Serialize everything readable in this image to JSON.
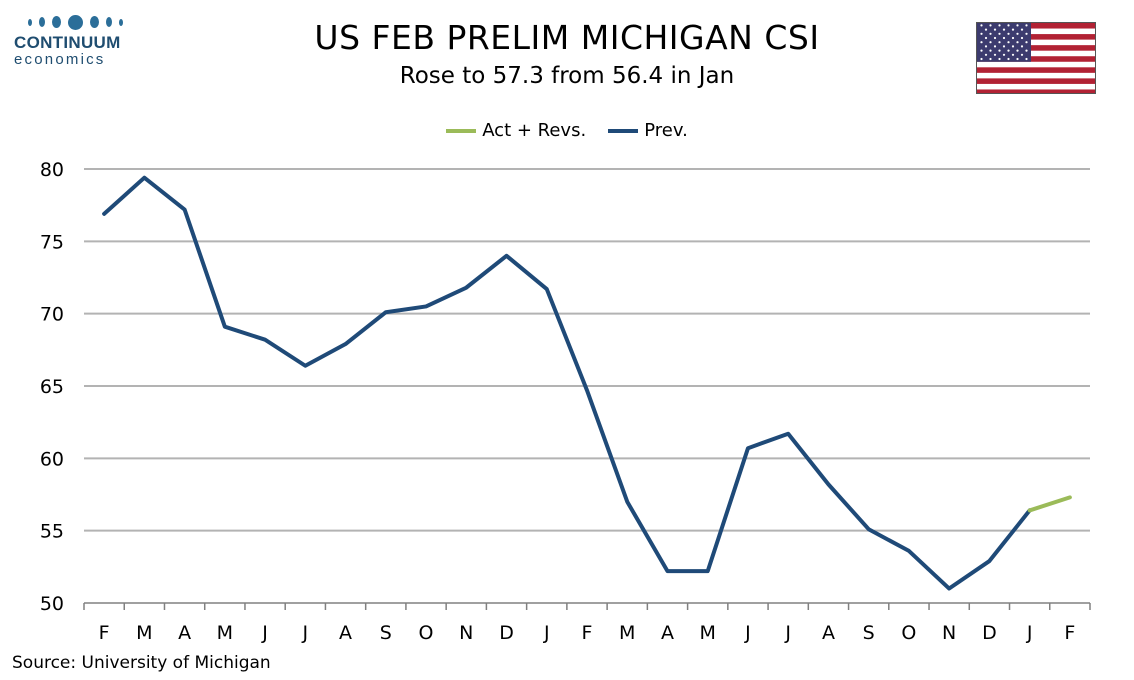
{
  "logo": {
    "name": "CONTINUUM",
    "sub": "economics"
  },
  "header": {
    "title": "US FEB PRELIM MICHIGAN CSI",
    "subtitle": "Rose to 57.3 from 56.4 in Jan"
  },
  "flag": {
    "name": "us-flag"
  },
  "source": "Source: University of Michigan",
  "colors": {
    "prev": "#1f4a78",
    "act": "#9bbb59",
    "grid": "#b3b3b3",
    "axis": "#808080"
  },
  "chart_data": {
    "type": "line",
    "title": "US FEB PRELIM MICHIGAN CSI",
    "subtitle": "Rose to 57.3 from 56.4 in Jan",
    "categories": [
      "F",
      "M",
      "A",
      "M",
      "J",
      "J",
      "A",
      "S",
      "O",
      "N",
      "D",
      "J",
      "F",
      "M",
      "A",
      "M",
      "J",
      "J",
      "A",
      "S",
      "O",
      "N",
      "D",
      "J",
      "F"
    ],
    "ylim": [
      50,
      80
    ],
    "yticks": [
      50,
      55,
      60,
      65,
      70,
      75,
      80
    ],
    "grid": true,
    "legend_position": "top-center",
    "series": [
      {
        "name": "Act + Revs.",
        "color": "#9bbb59",
        "values": [
          null,
          null,
          null,
          null,
          null,
          null,
          null,
          null,
          null,
          null,
          null,
          null,
          null,
          null,
          null,
          null,
          null,
          null,
          null,
          null,
          null,
          null,
          null,
          56.4,
          57.3
        ]
      },
      {
        "name": "Prev.",
        "color": "#1f4a78",
        "values": [
          76.9,
          79.4,
          77.2,
          69.1,
          68.2,
          66.4,
          67.9,
          70.1,
          70.5,
          71.8,
          74.0,
          71.7,
          64.7,
          57.0,
          52.2,
          52.2,
          60.7,
          61.7,
          58.2,
          55.1,
          53.6,
          51.0,
          52.9,
          56.4,
          null
        ]
      }
    ],
    "xlabel": "",
    "ylabel": "",
    "source": "Source: University of Michigan"
  }
}
